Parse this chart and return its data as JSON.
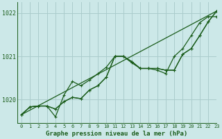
{
  "background_color": "#cce8e8",
  "grid_color": "#aacccc",
  "line_color": "#1a5c1a",
  "title": "Graphe pression niveau de la mer (hPa)",
  "xlim": [
    -0.5,
    23
  ],
  "ylim": [
    1019.45,
    1022.25
  ],
  "yticks": [
    1020,
    1021,
    1022
  ],
  "xticks": [
    0,
    1,
    2,
    3,
    4,
    5,
    6,
    7,
    8,
    9,
    10,
    11,
    12,
    13,
    14,
    15,
    16,
    17,
    18,
    19,
    20,
    21,
    22,
    23
  ],
  "series1_x": [
    0,
    1,
    2,
    3,
    4,
    5,
    6,
    7,
    8,
    9,
    10,
    11,
    12,
    13,
    14,
    15,
    16,
    17,
    18,
    19,
    20,
    21,
    22,
    23
  ],
  "series1_y": [
    1019.65,
    1019.83,
    1019.85,
    1019.85,
    1019.78,
    1019.95,
    1020.05,
    1020.02,
    1020.22,
    1020.32,
    1020.52,
    1021.0,
    1021.0,
    1020.88,
    1020.72,
    1020.72,
    1020.72,
    1020.68,
    1020.68,
    1021.05,
    1021.18,
    1021.48,
    1021.8,
    1022.05
  ],
  "series2_x": [
    0,
    1,
    2,
    3,
    4,
    5,
    6,
    7,
    8,
    9,
    10,
    11,
    12,
    13,
    14,
    15,
    16,
    17,
    18,
    19,
    20,
    21,
    22,
    23
  ],
  "series2_y": [
    1019.65,
    1019.83,
    1019.85,
    1019.85,
    1019.6,
    1020.1,
    1020.42,
    1020.32,
    1020.45,
    1020.6,
    1020.75,
    1021.0,
    1021.0,
    1020.85,
    1020.72,
    1020.72,
    1020.68,
    1020.6,
    1021.0,
    1021.18,
    1021.48,
    1021.78,
    1021.92,
    1021.92
  ],
  "series3_x": [
    0,
    1,
    2,
    3,
    4,
    5,
    6,
    7,
    8,
    9,
    10,
    11,
    12,
    13,
    14,
    15,
    16,
    17,
    18,
    19,
    20,
    21,
    22,
    23
  ],
  "series3_y": [
    1019.65,
    1019.83,
    1019.85,
    1019.85,
    1019.78,
    1019.95,
    1020.05,
    1020.02,
    1020.22,
    1020.32,
    1020.52,
    1021.0,
    1021.0,
    1020.88,
    1020.72,
    1020.72,
    1020.72,
    1020.68,
    1020.68,
    1021.05,
    1021.18,
    1021.48,
    1021.8,
    1022.05
  ],
  "series4_x": [
    0,
    23
  ],
  "series4_y": [
    1019.65,
    1022.05
  ]
}
